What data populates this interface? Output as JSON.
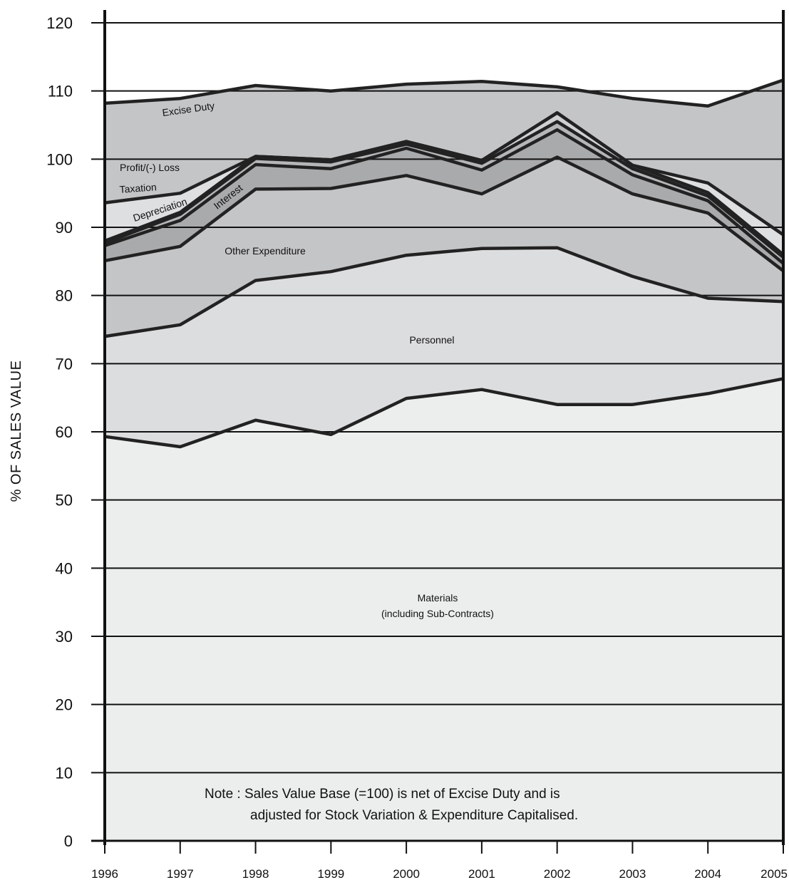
{
  "chart_data": {
    "type": "area",
    "y_axis_label": "% OF SALES VALUE",
    "ylim": [
      0,
      120
    ],
    "y_ticks": [
      "0",
      "10",
      "20",
      "30",
      "40",
      "50",
      "60",
      "70",
      "80",
      "90",
      "100",
      "110",
      "120"
    ],
    "categories": [
      "1996",
      "1997",
      "1998",
      "1999",
      "2000",
      "2001",
      "2002",
      "2003",
      "2004",
      "2005"
    ],
    "grid": "horizontal",
    "series": [
      {
        "name": "Materials (including Sub-Contracts)",
        "fill": "#eceeee",
        "values": [
          59.3,
          57.8,
          61.7,
          59.6,
          64.9,
          66.2,
          64.0,
          64.0,
          65.6,
          67.8
        ]
      },
      {
        "name": "Personnel",
        "fill": "#dcdddf",
        "values": [
          74.0,
          75.7,
          82.2,
          83.5,
          85.9,
          86.9,
          87.0,
          82.8,
          79.6,
          79.1
        ]
      },
      {
        "name": "Other Expenditure",
        "fill": "#c4c5c7",
        "values": [
          85.1,
          87.2,
          95.6,
          95.7,
          97.6,
          94.9,
          100.3,
          94.9,
          92.1,
          83.6
        ]
      },
      {
        "name": "Interest",
        "fill": "#a9aaac",
        "values": [
          87.3,
          91.0,
          99.2,
          98.6,
          101.6,
          98.4,
          104.3,
          97.7,
          93.9,
          84.7
        ]
      },
      {
        "name": "Depreciation",
        "fill": "#b5b6b8",
        "values": [
          87.7,
          91.9,
          100.1,
          99.6,
          102.2,
          99.4,
          105.5,
          98.6,
          94.6,
          85.6
        ]
      },
      {
        "name": "Taxation",
        "fill": "#cfd0d2",
        "values": [
          88.0,
          92.2,
          100.4,
          99.9,
          102.6,
          99.8,
          106.8,
          99.1,
          95.1,
          86.0
        ]
      },
      {
        "name": "Profit/(-) Loss",
        "fill": "#dedfe0",
        "values": [
          93.6,
          95.0,
          100.4,
          99.9,
          102.6,
          99.8,
          106.8,
          99.1,
          96.5,
          88.9
        ]
      },
      {
        "name": "Excise Duty",
        "fill": "#c4c5c7",
        "values": [
          108.2,
          108.9,
          110.8,
          110.0,
          111.0,
          111.4,
          110.6,
          108.9,
          107.8,
          111.6
        ]
      }
    ],
    "labels": {
      "materials_1": "Materials",
      "materials_2": "(including Sub-Contracts)",
      "personnel": "Personnel",
      "other": "Other Expenditure",
      "interest": "Interest",
      "depreciation": "Depreciation",
      "taxation": "Taxation",
      "profit": "Profit/(-) Loss",
      "excise": "Excise Duty"
    },
    "note_line1": "Note : Sales Value Base (=100) is net of Excise Duty and is",
    "note_line2": "adjusted for Stock Variation & Expenditure Capitalised."
  }
}
